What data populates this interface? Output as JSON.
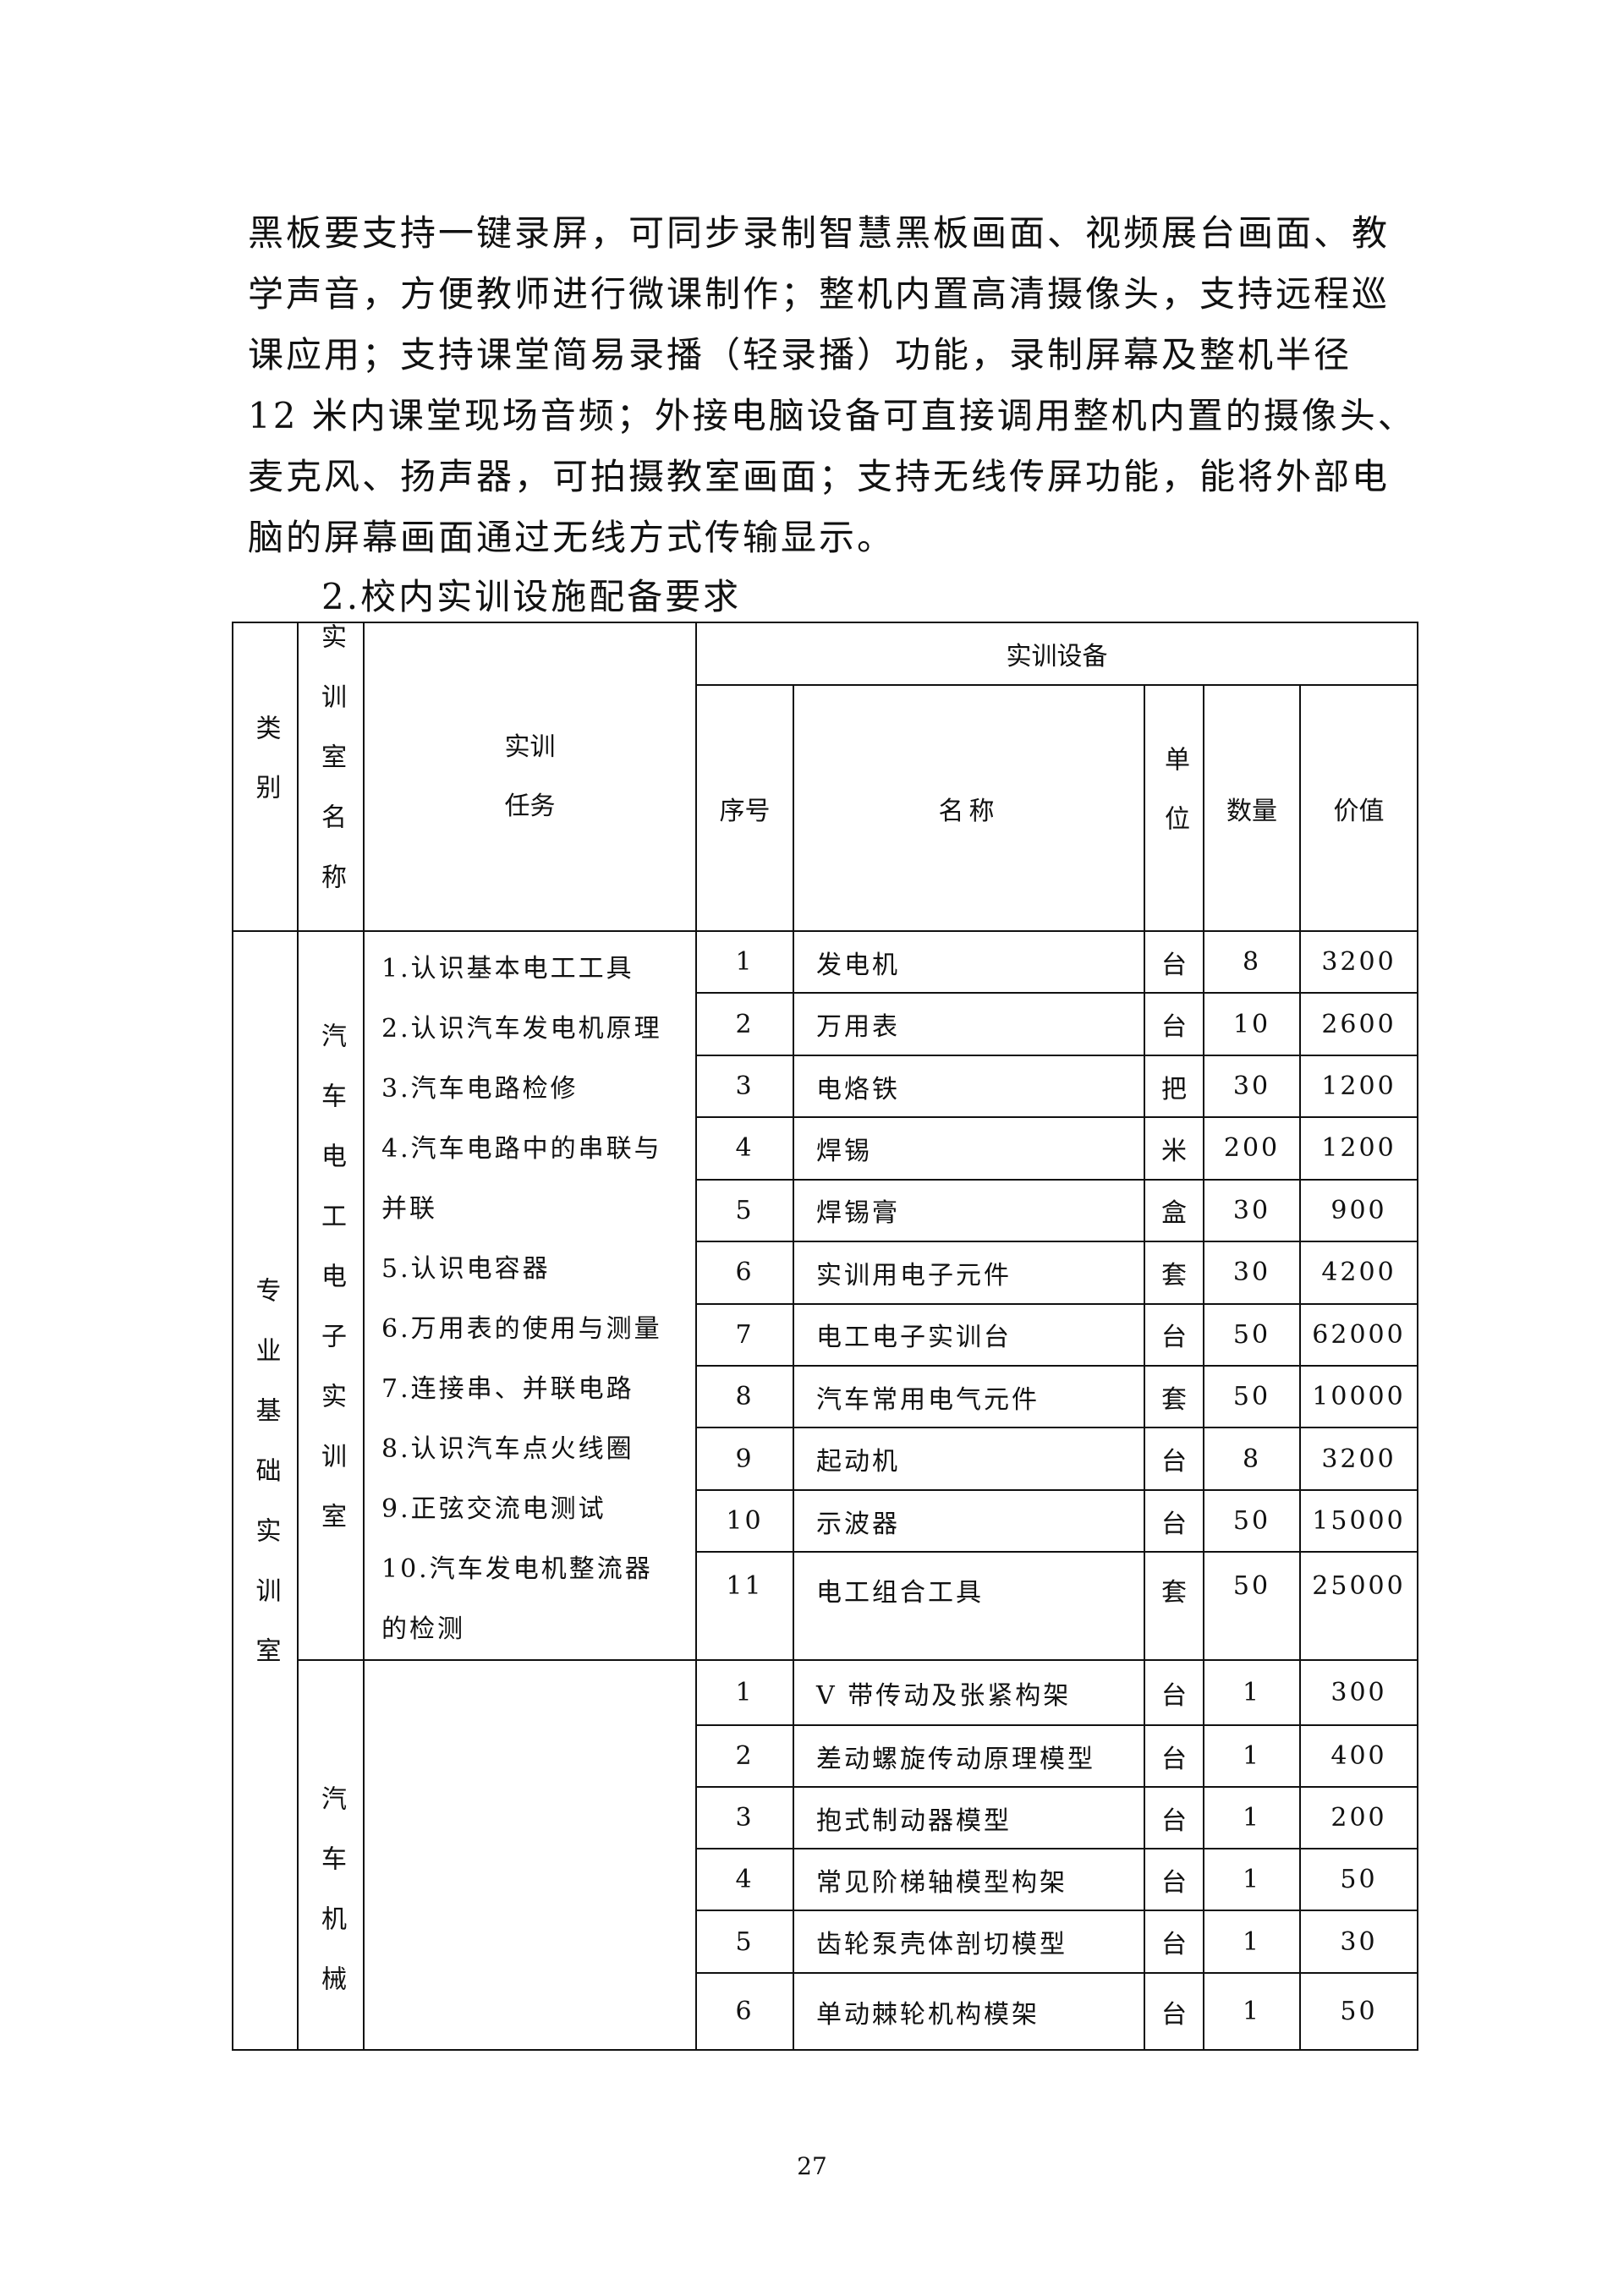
{
  "paragraph_lines": [
    "黑板要支持一键录屏，可同步录制智慧黑板画面、视频展台画面、教",
    "学声音，方便教师进行微课制作；整机内置高清摄像头，支持远程巡",
    "课应用；支持课堂简易录播（轻录播）功能，录制屏幕及整机半径",
    "12 米内课堂现场音频；外接电脑设备可直接调用整机内置的摄像头、",
    "麦克风、扬声器，可拍摄教室画面；支持无线传屏功能，能将外部电",
    "脑的屏幕画面通过无线方式传输显示。"
  ],
  "section_heading": "2.校内实训设施配备要求",
  "table": {
    "headers": {
      "category": "类别",
      "room_name": "实训室名称",
      "task_line1": "实训",
      "task_line2": "任务",
      "equipment": "实训设备",
      "seq": "序号",
      "name": "名称",
      "unit": "单位",
      "quantity": "数量",
      "value": "价值"
    },
    "category": "专业基础实训室",
    "rooms": [
      {
        "name": "汽车电工电子实训室",
        "task_lines": [
          "1.认识基本电工工具",
          "2.认识汽车发电机原理",
          "3.汽车电路检修",
          "4.汽车电路中的串联与",
          "并联",
          "5.认识电容器",
          "6.万用表的使用与测量",
          "7.连接串、并联电路",
          "8.认识汽车点火线圈",
          "9.正弦交流电测试",
          "10.汽车发电机整流器",
          "的检测"
        ],
        "equipment": [
          {
            "seq": "1",
            "name": "发电机",
            "unit": "台",
            "quantity": "8",
            "value": "3200"
          },
          {
            "seq": "2",
            "name": "万用表",
            "unit": "台",
            "quantity": "10",
            "value": "2600"
          },
          {
            "seq": "3",
            "name": "电烙铁",
            "unit": "把",
            "quantity": "30",
            "value": "1200"
          },
          {
            "seq": "4",
            "name": "焊锡",
            "unit": "米",
            "quantity": "200",
            "value": "1200"
          },
          {
            "seq": "5",
            "name": "焊锡膏",
            "unit": "盒",
            "quantity": "30",
            "value": "900"
          },
          {
            "seq": "6",
            "name": "实训用电子元件",
            "unit": "套",
            "quantity": "30",
            "value": "4200"
          },
          {
            "seq": "7",
            "name": "电工电子实训台",
            "unit": "台",
            "quantity": "50",
            "value": "62000"
          },
          {
            "seq": "8",
            "name": "汽车常用电气元件",
            "unit": "套",
            "quantity": "50",
            "value": "10000"
          },
          {
            "seq": "9",
            "name": "起动机",
            "unit": "台",
            "quantity": "8",
            "value": "3200"
          },
          {
            "seq": "10",
            "name": "示波器",
            "unit": "台",
            "quantity": "50",
            "value": "15000"
          },
          {
            "seq": "11",
            "name": "电工组合工具",
            "unit": "套",
            "quantity": "50",
            "value": "25000"
          }
        ]
      },
      {
        "name": "汽车机械",
        "equipment": [
          {
            "seq": "1",
            "name": "V 带传动及张紧构架",
            "unit": "台",
            "quantity": "1",
            "value": "300"
          },
          {
            "seq": "2",
            "name": "差动螺旋传动原理模型",
            "unit": "台",
            "quantity": "1",
            "value": "400"
          },
          {
            "seq": "3",
            "name": "抱式制动器模型",
            "unit": "台",
            "quantity": "1",
            "value": "200"
          },
          {
            "seq": "4",
            "name": "常见阶梯轴模型构架",
            "unit": "台",
            "quantity": "1",
            "value": "50"
          },
          {
            "seq": "5",
            "name": "齿轮泵壳体剖切模型",
            "unit": "台",
            "quantity": "1",
            "value": "30"
          },
          {
            "seq": "6",
            "name": "单动棘轮机构模架",
            "unit": "台",
            "quantity": "1",
            "value": "50"
          }
        ]
      }
    ]
  },
  "page_number": "27"
}
